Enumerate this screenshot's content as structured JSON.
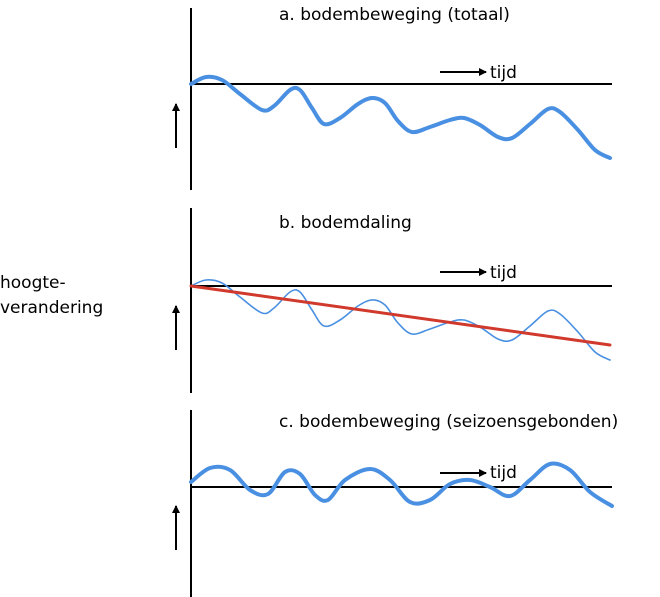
{
  "y_label_lines": [
    "hoogte-",
    "verandering"
  ],
  "time_label": "tijd",
  "colors": {
    "total": "#4a90e2",
    "seasonal": "#4a90e2",
    "trend": "#d0392b",
    "axes": "#000000"
  },
  "panels": [
    {
      "title": "a. bodembeweging (totaal)",
      "curve": "total",
      "stroke": "thick"
    },
    {
      "title": "b. bodemdaling",
      "curve": "total",
      "stroke": "thin",
      "trend": true
    },
    {
      "title": "c. bodembeweging (seizoensgebonden)",
      "curve": "seasonal",
      "stroke": "thick"
    }
  ]
}
